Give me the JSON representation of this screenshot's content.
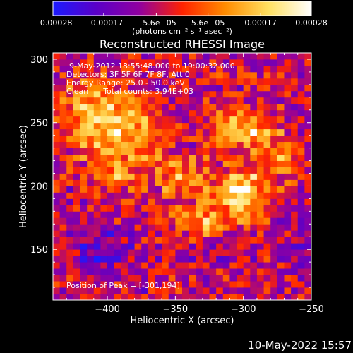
{
  "chart_data": {
    "type": "heatmap",
    "title": "Reconstructed RHESSI Image",
    "xlabel": "Heliocentric X (arcsec)",
    "ylabel": "Heliocentric Y (arcsec)",
    "xlim": [
      -440,
      -250
    ],
    "ylim": [
      110,
      305
    ],
    "x_ticks": [
      -400,
      -350,
      -300,
      -250
    ],
    "x_tick_labels": [
      "−400",
      "−350",
      "−300",
      "−250"
    ],
    "y_ticks": [
      150,
      200,
      250,
      300
    ],
    "y_tick_labels": [
      "150",
      "200",
      "250",
      "300"
    ],
    "colorbar": {
      "min": -0.00028,
      "max": 0.00028,
      "ticks": [
        -0.00028,
        -0.00017,
        -5.6e-05,
        5.6e-05,
        0.00017,
        0.00028
      ],
      "tick_labels": [
        "−0.00028",
        "−0.00017",
        "−5.6e−05",
        "5.6e−05",
        "0.00017",
        "0.00028"
      ],
      "unit_label": "(photons cm⁻² s⁻¹ asec⁻²)",
      "colors": [
        "#1b1bff",
        "#5a00c8",
        "#9000a0",
        "#ff2200",
        "#ff8c00",
        "#ffe060",
        "#ffffff"
      ]
    },
    "info_lines": [
      "9-May-2012 18:55:48.000 to 19:00:32.000",
      "Detectors: 3F 5F 6F 7F 8F, Att 0",
      "Energy Range: 25.0 - 50.0 keV",
      "Clean      Total counts: 3.94E+03"
    ],
    "peak_label": "Position of Peak = [-301,194]",
    "peak": [
      -301,
      194
    ],
    "emission_sources": [
      {
        "x": -410,
        "y": 255,
        "sx": 16,
        "sy": 22,
        "amp": 0.00022
      },
      {
        "x": -380,
        "y": 240,
        "sx": 15,
        "sy": 15,
        "amp": 0.00018
      },
      {
        "x": -345,
        "y": 205,
        "sx": 14,
        "sy": 12,
        "amp": 0.00016
      },
      {
        "x": -301,
        "y": 194,
        "sx": 12,
        "sy": 14,
        "amp": 0.00028
      },
      {
        "x": -300,
        "y": 245,
        "sx": 14,
        "sy": 11,
        "amp": 0.00024
      },
      {
        "x": -330,
        "y": 172,
        "sx": 12,
        "sy": 10,
        "amp": 0.00017
      },
      {
        "x": -270,
        "y": 220,
        "sx": 9,
        "sy": 14,
        "amp": 0.00013
      },
      {
        "x": -395,
        "y": 205,
        "sx": 9,
        "sy": 9,
        "amp": 0.00012
      }
    ],
    "negative_sources": [
      {
        "x": -405,
        "y": 150,
        "sx": 13,
        "sy": 11,
        "amp": -0.00014
      },
      {
        "x": -325,
        "y": 150,
        "sx": 10,
        "sy": 8,
        "amp": -9e-05
      },
      {
        "x": -260,
        "y": 150,
        "sx": 12,
        "sy": 12,
        "amp": -6e-05
      }
    ],
    "background": -5e-05
  },
  "footer": {
    "timestamp": "10-May-2022 15:57"
  }
}
